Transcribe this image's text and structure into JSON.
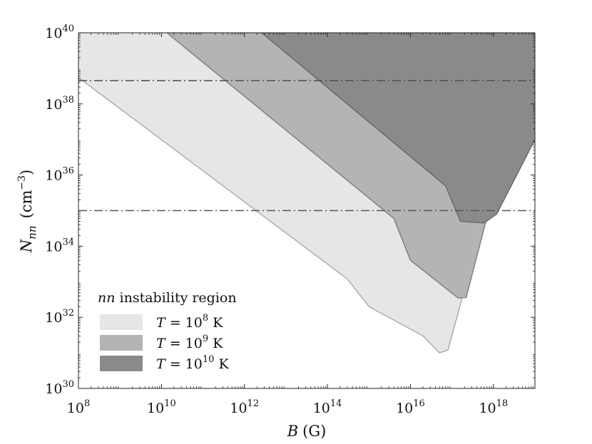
{
  "chart_data": {
    "type": "area",
    "xscale": "log",
    "yscale": "log",
    "xlim": [
      100000000.0,
      1e+19
    ],
    "ylim": [
      1e+30,
      1e+40
    ],
    "grid": false,
    "legend_placement": "bottom-left",
    "xlabel": {
      "var": "B",
      "unit": "(G)"
    },
    "ylabel": {
      "var": "N",
      "sub": "nn",
      "unit_prefix": "(cm",
      "unit_exp": "−3",
      "unit_suffix": ")"
    },
    "x_ticks": [
      {
        "base": "10",
        "exp": "8",
        "value": 100000000.0
      },
      {
        "base": "10",
        "exp": "10",
        "value": 10000000000.0
      },
      {
        "base": "10",
        "exp": "12",
        "value": 1000000000000.0
      },
      {
        "base": "10",
        "exp": "14",
        "value": 100000000000000.0
      },
      {
        "base": "10",
        "exp": "16",
        "value": 1e+16
      },
      {
        "base": "10",
        "exp": "18",
        "value": 1e+18
      }
    ],
    "y_ticks": [
      {
        "base": "10",
        "exp": "30",
        "value": 1e+30
      },
      {
        "base": "10",
        "exp": "32",
        "value": 1e+32
      },
      {
        "base": "10",
        "exp": "34",
        "value": 1e+34
      },
      {
        "base": "10",
        "exp": "36",
        "value": 1e+36
      },
      {
        "base": "10",
        "exp": "38",
        "value": 1e+38
      },
      {
        "base": "10",
        "exp": "40",
        "value": 1e+40
      }
    ],
    "legend_title": {
      "ital": "nn",
      "rest": " instability region"
    },
    "series": [
      {
        "name": "T = 10^8 K",
        "label_var": "T",
        "label_eq": " = 10",
        "label_exp": "8",
        "label_unit": " K",
        "fill": "#e6e6e6",
        "stroke": "#a8a8a8",
        "boundary": [
          [
            100000000.0,
            5.5e+38
          ],
          [
            300000000000000.0,
            1.2e+33
          ],
          [
            1000000000000000.0,
            2e+32
          ],
          [
            2e+16,
            3e+31
          ],
          [
            5e+16,
            1e+31
          ],
          [
            8e+16,
            1.2e+31
          ],
          [
            1e+19,
            1e+40
          ]
        ]
      },
      {
        "name": "T = 10^9 K",
        "label_var": "T",
        "label_eq": " = 10",
        "label_exp": "9",
        "label_unit": " K",
        "fill": "#b4b4b4",
        "stroke": "#7c7c7c",
        "boundary": [
          [
            13500000000.0,
            1e+40
          ],
          [
            4000000000000000.0,
            6e+34
          ],
          [
            1e+16,
            4e+33
          ],
          [
            1.4e+17,
            3.5e+32
          ],
          [
            2.2e+17,
            3.6e+32
          ],
          [
            1e+19,
            1e+40
          ]
        ]
      },
      {
        "name": "T = 10^10 K",
        "label_var": "T",
        "label_eq": " = 10",
        "label_exp": "10",
        "label_unit": " K",
        "fill": "#8a8a8a",
        "stroke": "#666666",
        "boundary": [
          [
            2600000000000.0,
            1e+40
          ],
          [
            7e+16,
            5e+35
          ],
          [
            1.6e+17,
            5e+34
          ],
          [
            6e+17,
            4.5e+34
          ],
          [
            1.2e+18,
            8e+34
          ],
          [
            1e+19,
            1e+37
          ]
        ]
      }
    ],
    "reference_lines": [
      {
        "orientation": "horizontal",
        "y": 4.5e+38,
        "style": "dash-dot",
        "color": "#555555"
      },
      {
        "orientation": "horizontal",
        "y": 1e+35,
        "style": "dash-dot",
        "color": "#555555"
      }
    ]
  }
}
